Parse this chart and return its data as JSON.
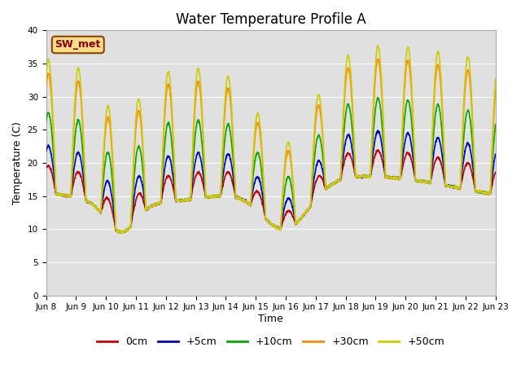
{
  "title": "Water Temperature Profile A",
  "xlabel": "Time",
  "ylabel": "Temperature (C)",
  "ylim": [
    0,
    40
  ],
  "yticks": [
    0,
    5,
    10,
    15,
    20,
    25,
    30,
    35,
    40
  ],
  "x_labels": [
    "Jun 8",
    "Jun 9",
    "Jun 10",
    "Jun 11",
    "Jun 12",
    "Jun 13",
    "Jun 14",
    "Jun 15",
    "Jun 16",
    "Jun 17",
    "Jun 18",
    "Jun 19",
    "Jun 20",
    "Jun 21",
    "Jun 22",
    "Jun 23"
  ],
  "annotation_text": "SW_met",
  "annotation_box_color": "#ffdd88",
  "annotation_border_color": "#884400",
  "annotation_text_color": "#880000",
  "lines": [
    {
      "label": "0cm",
      "color": "#cc0000",
      "lw": 1.2
    },
    {
      "label": "+5cm",
      "color": "#0000cc",
      "lw": 1.2
    },
    {
      "label": "+10cm",
      "color": "#00aa00",
      "lw": 1.2
    },
    {
      "label": "+30cm",
      "color": "#ff8800",
      "lw": 1.2
    },
    {
      "label": "+50cm",
      "color": "#cccc00",
      "lw": 1.2
    }
  ],
  "bg_color": "#e0e0e0",
  "plot_bg_color": "#e0e0e0",
  "grid_color": "#ffffff",
  "fig_bg_color": "#ffffff"
}
